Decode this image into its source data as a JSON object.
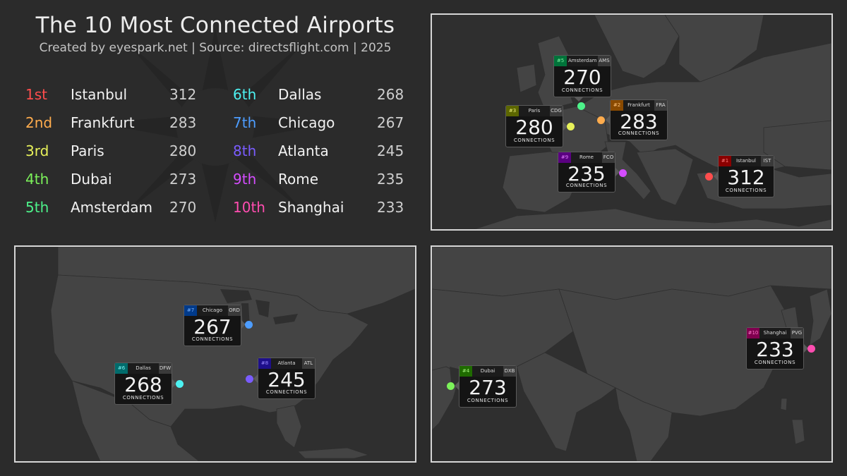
{
  "title": "The 10 Most Connected Airports",
  "subtitle": "Created by eyespark.net | Source: directsflight.com | 2025",
  "ranking": [
    {
      "rank": "1st",
      "city": "Istanbul",
      "value": "312",
      "color": "#ff4d4d"
    },
    {
      "rank": "2nd",
      "city": "Frankfurt",
      "value": "283",
      "color": "#ffac4d"
    },
    {
      "rank": "3rd",
      "city": "Paris",
      "value": "280",
      "color": "#e8f25a"
    },
    {
      "rank": "4th",
      "city": "Dubai",
      "value": "273",
      "color": "#7cf25a"
    },
    {
      "rank": "5th",
      "city": "Amsterdam",
      "value": "270",
      "color": "#4df28a"
    },
    {
      "rank": "6th",
      "city": "Dallas",
      "value": "268",
      "color": "#4df2f2"
    },
    {
      "rank": "7th",
      "city": "Chicago",
      "value": "267",
      "color": "#4d9dff"
    },
    {
      "rank": "8th",
      "city": "Atlanta",
      "value": "245",
      "color": "#7a5cff"
    },
    {
      "rank": "9th",
      "city": "Rome",
      "value": "235",
      "color": "#d54dff"
    },
    {
      "rank": "10th",
      "city": "Shanghai",
      "value": "233",
      "color": "#ff4db0"
    }
  ],
  "callouts": [
    {
      "rank": "#1",
      "city": "Istanbul",
      "code": "IST",
      "value": "312",
      "label": "CONNECTIONS",
      "rank_bg": "#8a0000"
    },
    {
      "rank": "#2",
      "city": "Frankfurt",
      "code": "FRA",
      "value": "283",
      "label": "CONNECTIONS",
      "rank_bg": "#8a4a00"
    },
    {
      "rank": "#3",
      "city": "Paris",
      "code": "CDG",
      "value": "280",
      "label": "CONNECTIONS",
      "rank_bg": "#5c6600"
    },
    {
      "rank": "#4",
      "city": "Dubai",
      "code": "DXB",
      "value": "273",
      "label": "CONNECTIONS",
      "rank_bg": "#1f6b00"
    },
    {
      "rank": "#5",
      "city": "Amsterdam",
      "code": "AMS",
      "value": "270",
      "label": "CONNECTIONS",
      "rank_bg": "#00733a"
    },
    {
      "rank": "#6",
      "city": "Dallas",
      "code": "DFW",
      "value": "268",
      "label": "CONNECTIONS",
      "rank_bg": "#006b6b"
    },
    {
      "rank": "#7",
      "city": "Chicago",
      "code": "ORD",
      "value": "267",
      "label": "CONNECTIONS",
      "rank_bg": "#003a8a"
    },
    {
      "rank": "#8",
      "city": "Atlanta",
      "code": "ATL",
      "value": "245",
      "label": "CONNECTIONS",
      "rank_bg": "#1e0f8a"
    },
    {
      "rank": "#9",
      "city": "Rome",
      "code": "FCO",
      "value": "235",
      "label": "CONNECTIONS",
      "rank_bg": "#5a0080"
    },
    {
      "rank": "#10",
      "city": "Shanghai",
      "code": "PVG",
      "value": "233",
      "label": "CONNECTIONS",
      "rank_bg": "#80004f"
    }
  ]
}
